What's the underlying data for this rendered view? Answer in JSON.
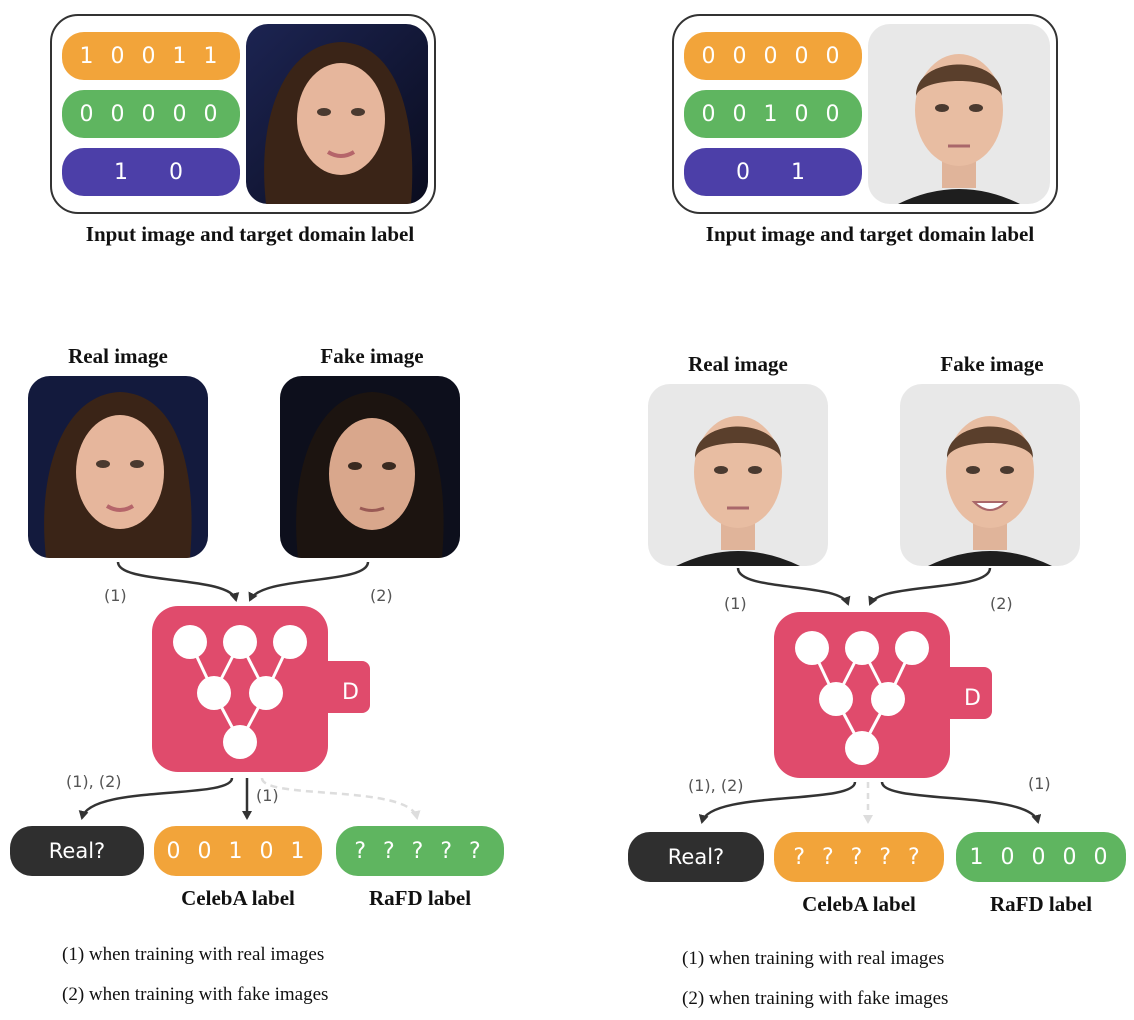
{
  "colors": {
    "orange": "#f2a43a",
    "green": "#5fb560",
    "purple": "#4c3fa8",
    "pink": "#e04b6c",
    "dark": "#2f2f2f"
  },
  "panels": [
    {
      "labels": {
        "celeba": "1 0 0 1 1",
        "rafd": "0 0 0 0 0",
        "mask": "1   0"
      },
      "input_caption": "Input image and target domain label",
      "real_title": "Real image",
      "fake_title": "Fake image",
      "arrow_1": "(1)",
      "arrow_2": "(2)",
      "out_left_marker": "(1), (2)",
      "out_mid_marker": "(1)",
      "out_right_marker": "",
      "disc_letter": "D",
      "real_q": "Real?",
      "celeba_out": "0 0 1 0 1",
      "rafd_out": "? ? ? ? ?",
      "celeba_caption": "CelebA label",
      "rafd_caption": "RaFD label",
      "note_1": "(1) when training with real images",
      "note_2": "(2) when training with fake images"
    },
    {
      "labels": {
        "celeba": "0 0 0 0 0",
        "rafd": "0 0 1 0 0",
        "mask": "0   1"
      },
      "input_caption": "Input image and target domain label",
      "real_title": "Real image",
      "fake_title": "Fake image",
      "arrow_1": "(1)",
      "arrow_2": "(2)",
      "out_left_marker": "(1), (2)",
      "out_mid_marker": "",
      "out_right_marker": "(1)",
      "disc_letter": "D",
      "real_q": "Real?",
      "celeba_out": "? ? ? ? ?",
      "rafd_out": "1 0 0 0 0",
      "celeba_caption": "CelebA label",
      "rafd_caption": "RaFD label",
      "note_1": "(1) when training with real images",
      "note_2": "(2) when training with fake images"
    }
  ]
}
